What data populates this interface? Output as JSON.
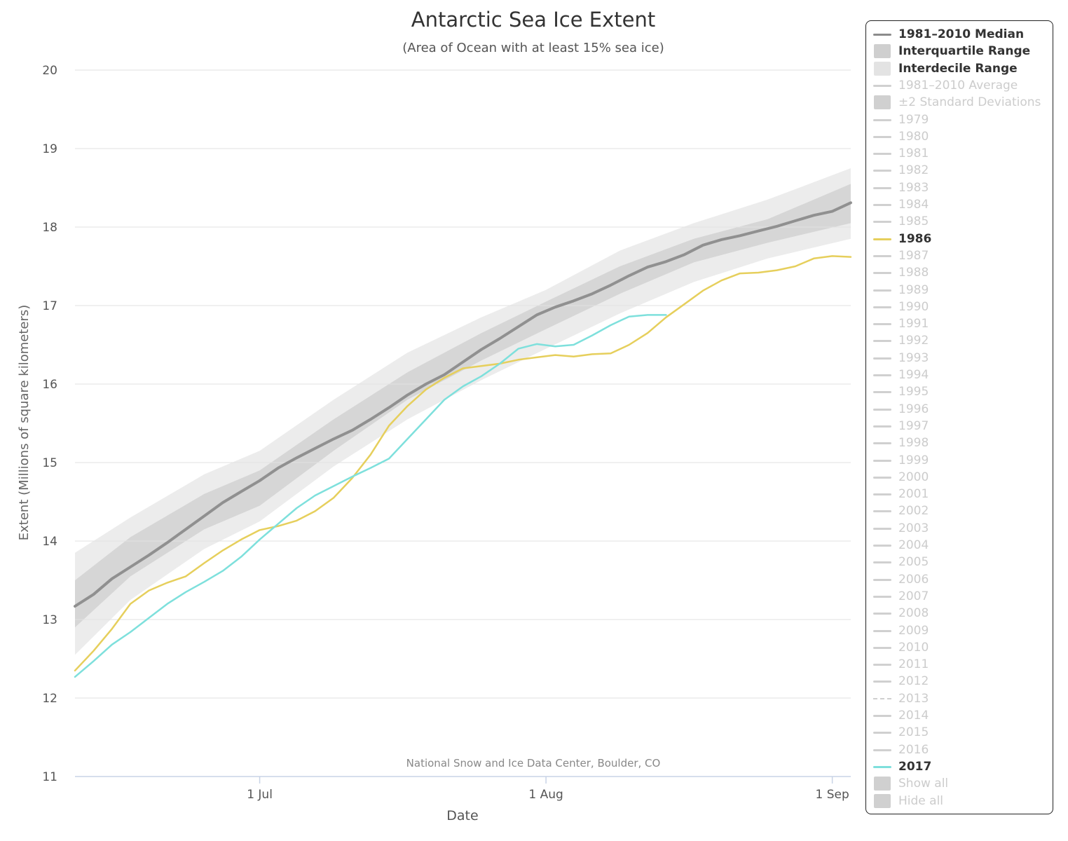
{
  "chart_data": {
    "type": "line",
    "title": "Antarctic Sea Ice Extent",
    "subtitle": "(Area of Ocean with at least 15% sea ice)",
    "xlabel": "Date",
    "ylabel": "Extent (Millions of square kilometers)",
    "credit": "National Snow and Ice Data Center, Boulder, CO",
    "x_range": [
      "2017-06-11",
      "2017-09-03"
    ],
    "ylim": [
      11,
      20
    ],
    "yticks": [
      "11",
      "12",
      "13",
      "14",
      "15",
      "16",
      "17",
      "18",
      "19",
      "20"
    ],
    "xticks": [
      {
        "label": "1 Jul",
        "date": "2017-07-01"
      },
      {
        "label": "1 Aug",
        "date": "2017-08-01"
      },
      {
        "label": "1 Sep",
        "date": "2017-09-01"
      }
    ],
    "grid": true,
    "legend_position": "right",
    "bands": [
      {
        "name": "Interdecile Range",
        "color": "#ececec",
        "x": [
          "2017-06-11",
          "2017-06-17",
          "2017-06-25",
          "2017-07-01",
          "2017-07-09",
          "2017-07-17",
          "2017-07-25",
          "2017-08-01",
          "2017-08-09",
          "2017-08-17",
          "2017-08-25",
          "2017-09-03"
        ],
        "low": [
          12.55,
          13.25,
          13.9,
          14.25,
          14.95,
          15.55,
          16.05,
          16.45,
          16.9,
          17.3,
          17.6,
          17.85
        ],
        "high": [
          13.85,
          14.3,
          14.85,
          15.15,
          15.8,
          16.4,
          16.85,
          17.2,
          17.7,
          18.05,
          18.35,
          18.75
        ]
      },
      {
        "name": "Interquartile Range",
        "color": "#d6d6d6",
        "x": [
          "2017-06-11",
          "2017-06-17",
          "2017-06-25",
          "2017-07-01",
          "2017-07-09",
          "2017-07-17",
          "2017-07-25",
          "2017-08-01",
          "2017-08-09",
          "2017-08-17",
          "2017-08-25",
          "2017-09-03"
        ],
        "low": [
          12.9,
          13.55,
          14.15,
          14.45,
          15.15,
          15.8,
          16.3,
          16.7,
          17.15,
          17.55,
          17.8,
          18.05
        ],
        "high": [
          13.5,
          14.05,
          14.6,
          14.9,
          15.55,
          16.15,
          16.65,
          17.05,
          17.5,
          17.85,
          18.1,
          18.55
        ]
      }
    ],
    "series": [
      {
        "name": "1981-2010 Median",
        "color": "#909090",
        "width": 4,
        "x": [
          "2017-06-11",
          "2017-06-13",
          "2017-06-15",
          "2017-06-17",
          "2017-06-19",
          "2017-06-21",
          "2017-06-23",
          "2017-06-25",
          "2017-06-27",
          "2017-06-29",
          "2017-07-01",
          "2017-07-03",
          "2017-07-05",
          "2017-07-07",
          "2017-07-09",
          "2017-07-11",
          "2017-07-13",
          "2017-07-15",
          "2017-07-17",
          "2017-07-19",
          "2017-07-21",
          "2017-07-23",
          "2017-07-25",
          "2017-07-27",
          "2017-07-29",
          "2017-07-31",
          "2017-08-02",
          "2017-08-04",
          "2017-08-06",
          "2017-08-08",
          "2017-08-10",
          "2017-08-12",
          "2017-08-14",
          "2017-08-16",
          "2017-08-18",
          "2017-08-20",
          "2017-08-22",
          "2017-08-24",
          "2017-08-26",
          "2017-08-28",
          "2017-08-30",
          "2017-09-01",
          "2017-09-03"
        ],
        "y": [
          13.17,
          13.32,
          13.52,
          13.67,
          13.82,
          13.98,
          14.15,
          14.32,
          14.49,
          14.63,
          14.77,
          14.93,
          15.06,
          15.18,
          15.3,
          15.41,
          15.55,
          15.7,
          15.86,
          16.0,
          16.12,
          16.28,
          16.44,
          16.58,
          16.73,
          16.88,
          16.98,
          17.06,
          17.15,
          17.26,
          17.38,
          17.49,
          17.56,
          17.65,
          17.77,
          17.84,
          17.89,
          17.95,
          18.01,
          18.08,
          18.15,
          18.2,
          18.31
        ]
      },
      {
        "name": "1986",
        "color": "#e6cf5c",
        "width": 2.5,
        "x": [
          "2017-06-11",
          "2017-06-13",
          "2017-06-15",
          "2017-06-17",
          "2017-06-19",
          "2017-06-21",
          "2017-06-23",
          "2017-06-25",
          "2017-06-27",
          "2017-06-29",
          "2017-07-01",
          "2017-07-03",
          "2017-07-05",
          "2017-07-07",
          "2017-07-09",
          "2017-07-11",
          "2017-07-13",
          "2017-07-15",
          "2017-07-17",
          "2017-07-19",
          "2017-07-21",
          "2017-07-23",
          "2017-07-25",
          "2017-07-27",
          "2017-07-29",
          "2017-07-31",
          "2017-08-02",
          "2017-08-04",
          "2017-08-06",
          "2017-08-08",
          "2017-08-10",
          "2017-08-12",
          "2017-08-14",
          "2017-08-16",
          "2017-08-18",
          "2017-08-20",
          "2017-08-22",
          "2017-08-24",
          "2017-08-26",
          "2017-08-28",
          "2017-08-30",
          "2017-09-01",
          "2017-09-03"
        ],
        "y": [
          12.35,
          12.6,
          12.88,
          13.2,
          13.37,
          13.47,
          13.55,
          13.72,
          13.88,
          14.02,
          14.14,
          14.19,
          14.26,
          14.38,
          14.55,
          14.8,
          15.1,
          15.47,
          15.72,
          15.93,
          16.08,
          16.2,
          16.23,
          16.26,
          16.31,
          16.34,
          16.37,
          16.35,
          16.38,
          16.39,
          16.5,
          16.65,
          16.85,
          17.02,
          17.19,
          17.32,
          17.41,
          17.42,
          17.45,
          17.5,
          17.6,
          17.63,
          17.62
        ]
      },
      {
        "name": "2017",
        "color": "#7ee0dc",
        "width": 2.5,
        "x": [
          "2017-06-11",
          "2017-06-13",
          "2017-06-15",
          "2017-06-17",
          "2017-06-19",
          "2017-06-21",
          "2017-06-23",
          "2017-06-25",
          "2017-06-27",
          "2017-06-29",
          "2017-07-01",
          "2017-07-03",
          "2017-07-05",
          "2017-07-07",
          "2017-07-09",
          "2017-07-11",
          "2017-07-13",
          "2017-07-15",
          "2017-07-17",
          "2017-07-19",
          "2017-07-21",
          "2017-07-23",
          "2017-07-25",
          "2017-07-27",
          "2017-07-29",
          "2017-07-31",
          "2017-08-02",
          "2017-08-04",
          "2017-08-06",
          "2017-08-08",
          "2017-08-10",
          "2017-08-12",
          "2017-08-14"
        ],
        "y": [
          12.27,
          12.47,
          12.68,
          12.84,
          13.02,
          13.2,
          13.35,
          13.48,
          13.62,
          13.8,
          14.02,
          14.22,
          14.42,
          14.58,
          14.7,
          14.82,
          14.93,
          15.05,
          15.3,
          15.55,
          15.8,
          15.97,
          16.1,
          16.26,
          16.45,
          16.51,
          16.48,
          16.5,
          16.62,
          16.75,
          16.86,
          16.88,
          16.88
        ]
      }
    ]
  },
  "legend": {
    "items": [
      {
        "label": "1981–2010 Median",
        "symbol": "line",
        "color": "#8c8c8c",
        "state": "active"
      },
      {
        "label": "Interquartile Range",
        "symbol": "rect",
        "color": "#cfcfcf",
        "state": "active"
      },
      {
        "label": "Interdecile Range",
        "symbol": "rect",
        "color": "#e3e3e3",
        "state": "active"
      },
      {
        "label": "1981–2010 Average",
        "symbol": "line",
        "color": "#d0d0d0",
        "state": "inactive"
      },
      {
        "label": "±2 Standard Deviations",
        "symbol": "rect",
        "color": "#d0d0d0",
        "state": "inactive"
      },
      {
        "label": "1979",
        "symbol": "line",
        "color": "#d0d0d0",
        "state": "inactive"
      },
      {
        "label": "1980",
        "symbol": "line",
        "color": "#d0d0d0",
        "state": "inactive"
      },
      {
        "label": "1981",
        "symbol": "line",
        "color": "#d0d0d0",
        "state": "inactive"
      },
      {
        "label": "1982",
        "symbol": "line",
        "color": "#d0d0d0",
        "state": "inactive"
      },
      {
        "label": "1983",
        "symbol": "line",
        "color": "#d0d0d0",
        "state": "inactive"
      },
      {
        "label": "1984",
        "symbol": "line",
        "color": "#d0d0d0",
        "state": "inactive"
      },
      {
        "label": "1985",
        "symbol": "line",
        "color": "#d0d0d0",
        "state": "inactive"
      },
      {
        "label": "1986",
        "symbol": "line",
        "color": "#e6cf5c",
        "state": "active"
      },
      {
        "label": "1987",
        "symbol": "line",
        "color": "#d0d0d0",
        "state": "inactive"
      },
      {
        "label": "1988",
        "symbol": "line",
        "color": "#d0d0d0",
        "state": "inactive"
      },
      {
        "label": "1989",
        "symbol": "line",
        "color": "#d0d0d0",
        "state": "inactive"
      },
      {
        "label": "1990",
        "symbol": "line",
        "color": "#d0d0d0",
        "state": "inactive"
      },
      {
        "label": "1991",
        "symbol": "line",
        "color": "#d0d0d0",
        "state": "inactive"
      },
      {
        "label": "1992",
        "symbol": "line",
        "color": "#d0d0d0",
        "state": "inactive"
      },
      {
        "label": "1993",
        "symbol": "line",
        "color": "#d0d0d0",
        "state": "inactive"
      },
      {
        "label": "1994",
        "symbol": "line",
        "color": "#d0d0d0",
        "state": "inactive"
      },
      {
        "label": "1995",
        "symbol": "line",
        "color": "#d0d0d0",
        "state": "inactive"
      },
      {
        "label": "1996",
        "symbol": "line",
        "color": "#d0d0d0",
        "state": "inactive"
      },
      {
        "label": "1997",
        "symbol": "line",
        "color": "#d0d0d0",
        "state": "inactive"
      },
      {
        "label": "1998",
        "symbol": "line",
        "color": "#d0d0d0",
        "state": "inactive"
      },
      {
        "label": "1999",
        "symbol": "line",
        "color": "#d0d0d0",
        "state": "inactive"
      },
      {
        "label": "2000",
        "symbol": "line",
        "color": "#d0d0d0",
        "state": "inactive"
      },
      {
        "label": "2001",
        "symbol": "line",
        "color": "#d0d0d0",
        "state": "inactive"
      },
      {
        "label": "2002",
        "symbol": "line",
        "color": "#d0d0d0",
        "state": "inactive"
      },
      {
        "label": "2003",
        "symbol": "line",
        "color": "#d0d0d0",
        "state": "inactive"
      },
      {
        "label": "2004",
        "symbol": "line",
        "color": "#d0d0d0",
        "state": "inactive"
      },
      {
        "label": "2005",
        "symbol": "line",
        "color": "#d0d0d0",
        "state": "inactive"
      },
      {
        "label": "2006",
        "symbol": "line",
        "color": "#d0d0d0",
        "state": "inactive"
      },
      {
        "label": "2007",
        "symbol": "line",
        "color": "#d0d0d0",
        "state": "inactive"
      },
      {
        "label": "2008",
        "symbol": "line",
        "color": "#d0d0d0",
        "state": "inactive"
      },
      {
        "label": "2009",
        "symbol": "line",
        "color": "#d0d0d0",
        "state": "inactive"
      },
      {
        "label": "2010",
        "symbol": "line",
        "color": "#d0d0d0",
        "state": "inactive"
      },
      {
        "label": "2011",
        "symbol": "line",
        "color": "#d0d0d0",
        "state": "inactive"
      },
      {
        "label": "2012",
        "symbol": "line",
        "color": "#d0d0d0",
        "state": "inactive"
      },
      {
        "label": "2013",
        "symbol": "dash",
        "color": "#d0d0d0",
        "state": "inactive"
      },
      {
        "label": "2014",
        "symbol": "line",
        "color": "#d0d0d0",
        "state": "inactive"
      },
      {
        "label": "2015",
        "symbol": "line",
        "color": "#d0d0d0",
        "state": "inactive"
      },
      {
        "label": "2016",
        "symbol": "line",
        "color": "#d0d0d0",
        "state": "inactive"
      },
      {
        "label": "2017",
        "symbol": "line",
        "color": "#7ee0dc",
        "state": "active"
      },
      {
        "label": "Show all",
        "symbol": "rect",
        "color": "#d0d0d0",
        "state": "inactive"
      },
      {
        "label": "Hide all",
        "symbol": "rect",
        "color": "#d0d0d0",
        "state": "inactive"
      }
    ]
  }
}
